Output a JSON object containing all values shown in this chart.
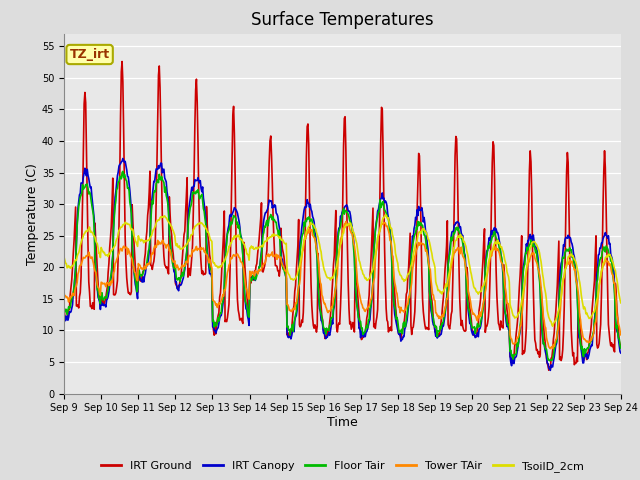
{
  "title": "Surface Temperatures",
  "xlabel": "Time",
  "ylabel": "Temperature (C)",
  "ylim": [
    0,
    57
  ],
  "yticks": [
    0,
    5,
    10,
    15,
    20,
    25,
    30,
    35,
    40,
    45,
    50,
    55
  ],
  "x_tick_labels": [
    "Sep 9",
    "Sep 10",
    "Sep 11",
    "Sep 12",
    "Sep 13",
    "Sep 14",
    "Sep 15",
    "Sep 16",
    "Sep 17",
    "Sep 18",
    "Sep 19",
    "Sep 20",
    "Sep 21",
    "Sep 22",
    "Sep 23",
    "Sep 24"
  ],
  "series": [
    {
      "name": "IRT Ground",
      "color": "#cc0000",
      "lw": 1.2
    },
    {
      "name": "IRT Canopy",
      "color": "#0000cc",
      "lw": 1.2
    },
    {
      "name": "Floor Tair",
      "color": "#00bb00",
      "lw": 1.2
    },
    {
      "name": "Tower TAir",
      "color": "#ff8800",
      "lw": 1.2
    },
    {
      "name": "TsoilD_2cm",
      "color": "#dddd00",
      "lw": 1.2
    }
  ],
  "annotation_text": "TZ_irt",
  "annotation_facecolor": "#ffffaa",
  "annotation_edgecolor": "#aaaa00",
  "annotation_textcolor": "#993300",
  "fig_facecolor": "#dddddd",
  "axes_facecolor": "#e8e8e8",
  "grid_color": "#ffffff",
  "title_fontsize": 12,
  "tick_fontsize": 7,
  "axis_label_fontsize": 9,
  "ground_peaks": [
    48,
    52,
    51,
    49,
    45,
    40,
    43,
    44,
    45,
    38,
    41,
    40,
    39,
    38,
    38
  ],
  "ground_mins": [
    12,
    14,
    18,
    17,
    10,
    18,
    9,
    9,
    9,
    9,
    9,
    9,
    5,
    4,
    6
  ],
  "canopy_peaks": [
    35,
    37,
    36,
    34,
    29,
    30,
    30,
    30,
    31,
    29,
    27,
    26,
    25,
    25,
    25
  ],
  "canopy_mins": [
    12,
    14,
    18,
    17,
    10,
    18,
    9,
    9,
    9,
    9,
    9,
    9,
    5,
    4,
    6
  ],
  "floor_peaks": [
    33,
    35,
    34,
    32,
    28,
    28,
    28,
    29,
    30,
    27,
    26,
    25,
    24,
    23,
    23
  ],
  "floor_mins": [
    13,
    15,
    19,
    18,
    11,
    18,
    10,
    10,
    10,
    10,
    10,
    10,
    6,
    5,
    7
  ],
  "tower_peaks": [
    22,
    23,
    24,
    23,
    22,
    22,
    26,
    27,
    27,
    24,
    23,
    23,
    22,
    21,
    21
  ],
  "tower_mins": [
    15,
    17,
    20,
    20,
    14,
    19,
    13,
    13,
    13,
    13,
    12,
    12,
    8,
    7,
    8
  ],
  "soil_peaks": [
    26,
    27,
    28,
    27,
    25,
    25,
    27,
    27,
    28,
    26,
    25,
    24,
    24,
    22,
    22
  ],
  "soil_mins": [
    20,
    22,
    24,
    23,
    20,
    23,
    18,
    18,
    18,
    18,
    16,
    16,
    12,
    11,
    12
  ]
}
